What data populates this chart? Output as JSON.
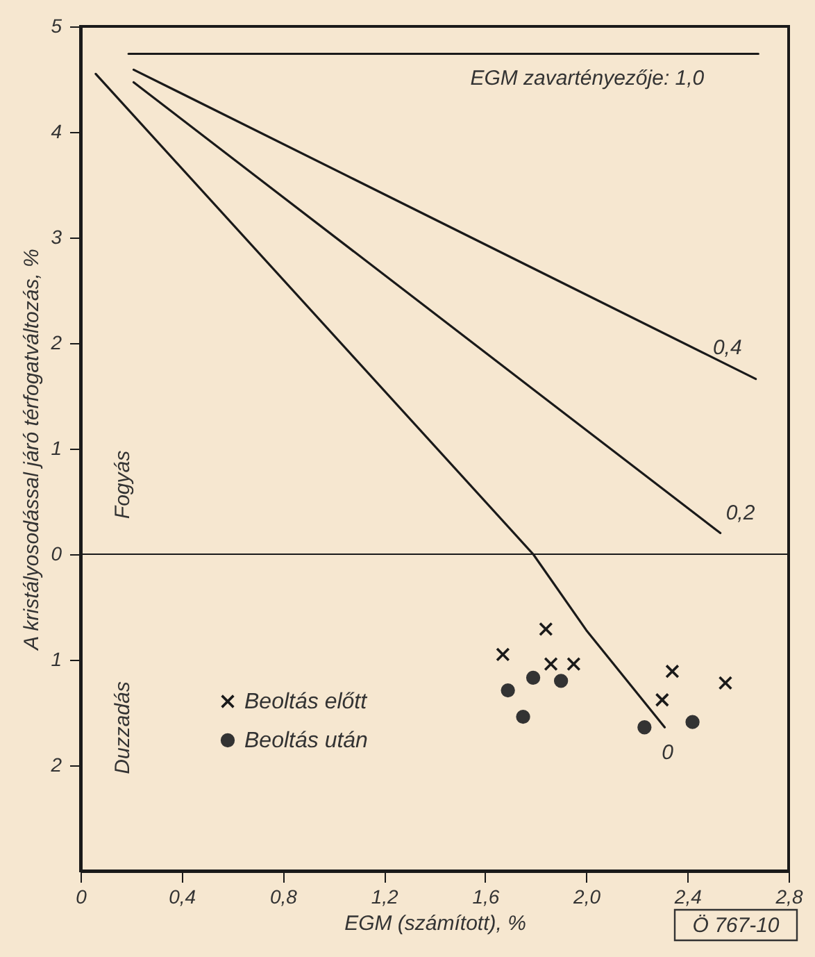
{
  "chart_data": {
    "type": "line",
    "xlabel": "EGM (számított), %",
    "ylabel": "A kristályosodással járó térfogatváltozás, %",
    "series": [
      {
        "name": "EGM zavartényezője: 1,0",
        "color": "#1a1a1a",
        "x": [
          0.19,
          2.68
        ],
        "values": [
          4.74,
          4.74
        ]
      },
      {
        "name": "0,4",
        "color": "#1a1a1a",
        "x": [
          0.21,
          2.67
        ],
        "values": [
          4.59,
          1.66
        ]
      },
      {
        "name": "0,2",
        "color": "#1a1a1a",
        "x": [
          0.21,
          2.53
        ],
        "values": [
          4.47,
          0.2
        ]
      },
      {
        "name": "0",
        "color": "#1a1a1a",
        "x": [
          0.06,
          1.79,
          2.0,
          2.31
        ],
        "values": [
          4.55,
          0.0,
          -0.72,
          -1.64
        ]
      },
      {
        "name": "Beoltás előtt",
        "type": "scatter",
        "marker": "cross",
        "color": "#1a1a1a",
        "x": [
          1.84,
          1.67,
          1.86,
          1.95,
          2.34,
          2.55,
          2.3
        ],
        "values": [
          -0.71,
          -0.95,
          -1.04,
          -1.04,
          -1.11,
          -1.22,
          -1.38
        ]
      },
      {
        "name": "Beoltás után",
        "type": "scatter",
        "marker": "circle",
        "color": "#333333",
        "x": [
          1.69,
          1.79,
          1.9,
          1.75,
          2.23,
          2.42
        ],
        "values": [
          -1.29,
          -1.17,
          -1.2,
          -1.54,
          -1.64,
          -1.59
        ]
      }
    ],
    "xlim": [
      0,
      2.8
    ],
    "ylim": [
      -3,
      5
    ],
    "xticks": [
      0,
      {
        "value": 0.4,
        "label": "0,4"
      },
      {
        "value": 0.8,
        "label": "0,8"
      },
      {
        "value": 1.2,
        "label": "1,2"
      },
      {
        "value": 1.6,
        "label": "1,6"
      },
      {
        "value": 2.0,
        "label": "2,0"
      },
      {
        "value": 2.4,
        "label": "2,4"
      },
      {
        "value": 2.8,
        "label": "2,8"
      }
    ],
    "yticks": [
      {
        "value": -2,
        "label": "2"
      },
      {
        "value": -1,
        "label": "1"
      },
      0,
      1,
      2,
      3,
      4,
      5
    ],
    "ref_lines": [
      {
        "axis": "y",
        "value": 0
      }
    ],
    "annotations": [
      "Fogyás",
      "Duzzadás",
      "Ö 767-10"
    ],
    "legend": "bottom left",
    "grid": false
  }
}
